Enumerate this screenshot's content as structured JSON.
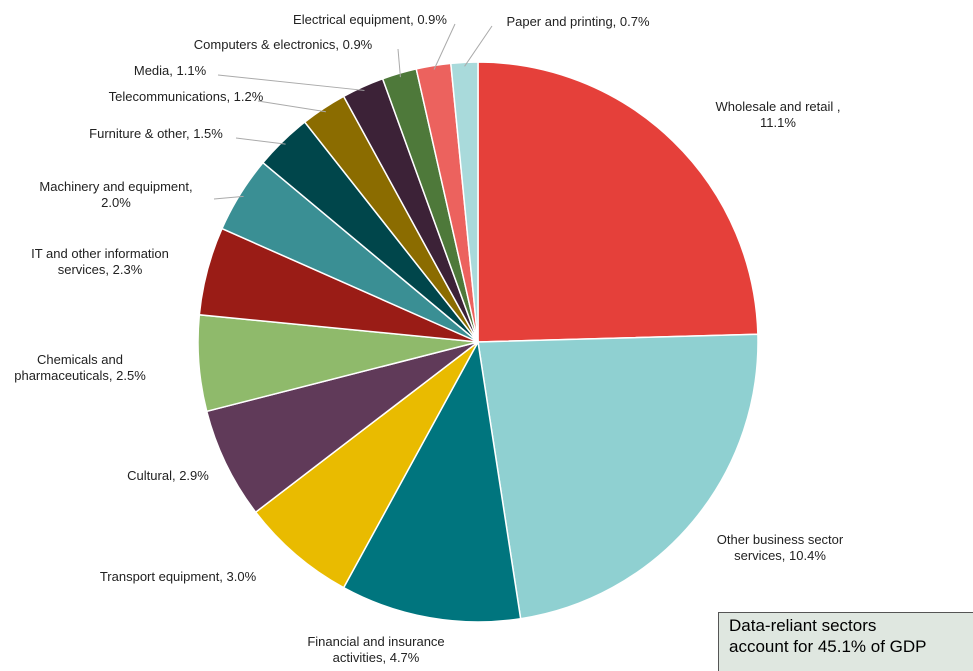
{
  "chart_data": {
    "type": "pie",
    "categories": [
      "Wholesale and retail ,\n11.1%",
      "Other business sector\nservices, 10.4%",
      "Financial and insurance\nactivities, 4.7%",
      "Transport equipment, 3.0%",
      "Cultural,  2.9%",
      "Chemicals and\npharmaceuticals, 2.5%",
      "IT and other information\nservices, 2.3%",
      "Machinery and equipment,\n2.0%",
      "Furniture & other, 1.5%",
      "Telecommunications, 1.2%",
      "Media, 1.1%",
      "Computers & electronics, 0.9%",
      "Electrical equipment, 0.9%",
      "Paper and printing,  0.7%"
    ],
    "values": [
      11.1,
      10.4,
      4.7,
      3.0,
      2.9,
      2.5,
      2.3,
      2.0,
      1.5,
      1.2,
      1.1,
      0.9,
      0.9,
      0.7
    ],
    "colors": [
      "#e5403a",
      "#8fd0d1",
      "#00757e",
      "#e9bb00",
      "#603a59",
      "#8fba6b",
      "#9a1c16",
      "#3a8f94",
      "#00464b",
      "#8b6c00",
      "#3c2237",
      "#4e793a",
      "#ec625e",
      "#a9dadb"
    ],
    "annotation": "Data-reliant sectors\naccount for 45.1% of GDP"
  }
}
